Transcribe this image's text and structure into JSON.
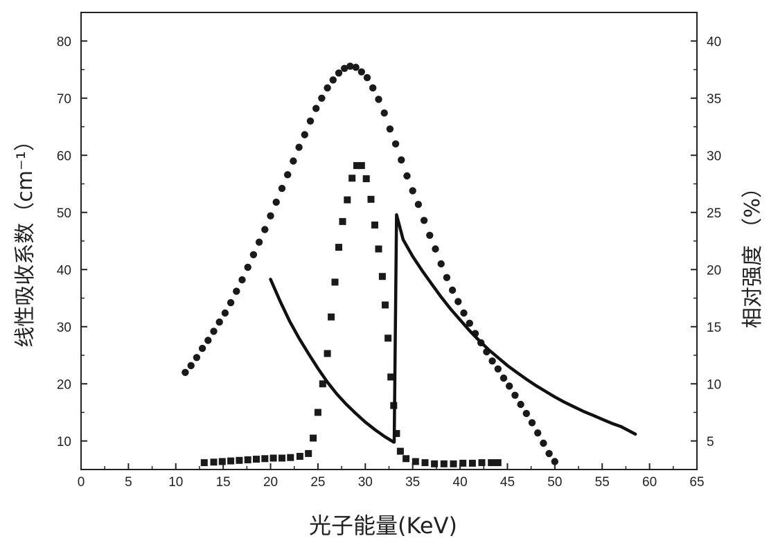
{
  "chart_data": {
    "type": "scatter",
    "title": "",
    "xlabel": "光子能量(KeV)",
    "ylabel_left": "线性吸收系数（cm⁻¹）",
    "ylabel_right": "相对强度 （%）",
    "xlim": [
      0,
      65
    ],
    "ylim_left": [
      5,
      85
    ],
    "ylim_right": [
      2.5,
      42.5
    ],
    "x_ticks": [
      0,
      5,
      10,
      15,
      20,
      25,
      30,
      35,
      40,
      45,
      50,
      55,
      60,
      65
    ],
    "y_left_ticks": [
      10,
      20,
      30,
      40,
      50,
      60,
      70,
      80
    ],
    "y_right_ticks": [
      5,
      10,
      15,
      20,
      25,
      30,
      35,
      40
    ],
    "grid": false,
    "series": [
      {
        "marker": "circle",
        "axis": "right",
        "x": [
          11,
          11.6,
          12.2,
          12.8,
          13.4,
          14,
          14.6,
          15.2,
          15.8,
          16.4,
          17,
          17.6,
          18.2,
          18.8,
          19.4,
          20,
          20.6,
          21.2,
          21.8,
          22.4,
          23,
          23.6,
          24.2,
          24.8,
          25.4,
          26,
          26.6,
          27.2,
          27.8,
          28.4,
          29,
          29.6,
          30.2,
          30.8,
          31.4,
          32,
          32.6,
          33.2,
          33.8,
          34.4,
          35,
          35.6,
          36.2,
          36.8,
          37.4,
          38,
          38.6,
          39.2,
          39.8,
          40.4,
          41,
          41.6,
          42.2,
          42.8,
          43.4,
          44,
          44.6,
          45.2,
          45.8,
          46.4,
          47,
          47.6,
          48.2,
          48.8,
          49.4,
          50
        ],
        "y": [
          11,
          11.6,
          12.3,
          13.1,
          13.8,
          14.6,
          15.4,
          16.2,
          17.1,
          18.1,
          19.1,
          20.2,
          21.3,
          22.4,
          23.5,
          24.7,
          25.9,
          27.1,
          28.3,
          29.5,
          30.7,
          31.8,
          33,
          34.1,
          35,
          35.9,
          36.6,
          37.2,
          37.6,
          37.8,
          37.7,
          37.3,
          36.8,
          35.9,
          34.9,
          33.7,
          32.3,
          31,
          29.6,
          28.2,
          26.9,
          25.7,
          24.3,
          23,
          21.8,
          20.5,
          19.3,
          18.2,
          17.2,
          16.2,
          15.3,
          14.4,
          13.6,
          12.8,
          12,
          11.3,
          10.5,
          9.8,
          9,
          8.2,
          7.4,
          6.6,
          5.7,
          4.8,
          3.9,
          3.2
        ]
      },
      {
        "marker": "square",
        "axis": "left",
        "x": [
          13,
          14,
          14.9,
          15.8,
          16.7,
          17.6,
          18.5,
          19.4,
          20.3,
          21.2,
          22.1,
          23.1,
          24,
          24.5,
          25,
          25.5,
          26,
          26.4,
          26.8,
          27.2,
          27.6,
          28.1,
          28.6,
          29.1,
          29.6,
          30.1,
          30.6,
          31,
          31.4,
          31.8,
          32.1,
          32.4,
          32.7,
          33,
          33.3,
          33.7,
          34.3,
          35.3,
          36.3,
          37.3,
          38.3,
          39.3,
          40.3,
          41.3,
          42.3,
          43.3,
          44
        ],
        "y": [
          6.2,
          6.3,
          6.4,
          6.5,
          6.6,
          6.7,
          6.8,
          6.9,
          7,
          7,
          7.1,
          7.3,
          7.8,
          10.5,
          15,
          20,
          25.3,
          31.7,
          37.8,
          43.9,
          48.4,
          52.2,
          56,
          58.2,
          58.2,
          55.9,
          52.3,
          47.8,
          43.6,
          38.8,
          33.8,
          28,
          21.2,
          16.2,
          11.3,
          8.2,
          6.9,
          6.4,
          6.2,
          6,
          6,
          6,
          6.1,
          6.1,
          6.2,
          6.2,
          6.2
        ]
      },
      {
        "marker": "line",
        "axis": "left",
        "x": [
          20,
          21,
          22,
          23,
          24,
          25,
          26,
          27,
          28,
          29,
          30,
          31,
          32,
          33,
          33.05,
          33.3,
          34,
          35,
          36,
          37,
          38,
          39,
          40,
          41,
          42,
          43,
          44,
          45,
          46,
          47,
          48,
          49,
          50,
          51,
          52,
          53,
          54,
          55,
          56,
          57,
          58.5
        ],
        "y": [
          38.3,
          34.5,
          31,
          28,
          25.3,
          22.7,
          20.3,
          18.2,
          16.4,
          14.8,
          13.3,
          12,
          10.8,
          9.8,
          9.8,
          49.6,
          45.2,
          42.3,
          39.8,
          37.5,
          35.2,
          33.1,
          31.2,
          29.3,
          27.6,
          26,
          24.6,
          23.2,
          22,
          20.8,
          19.7,
          18.7,
          17.7,
          16.8,
          16,
          15.2,
          14.5,
          13.8,
          13.1,
          12.5,
          11.2
        ]
      }
    ]
  }
}
